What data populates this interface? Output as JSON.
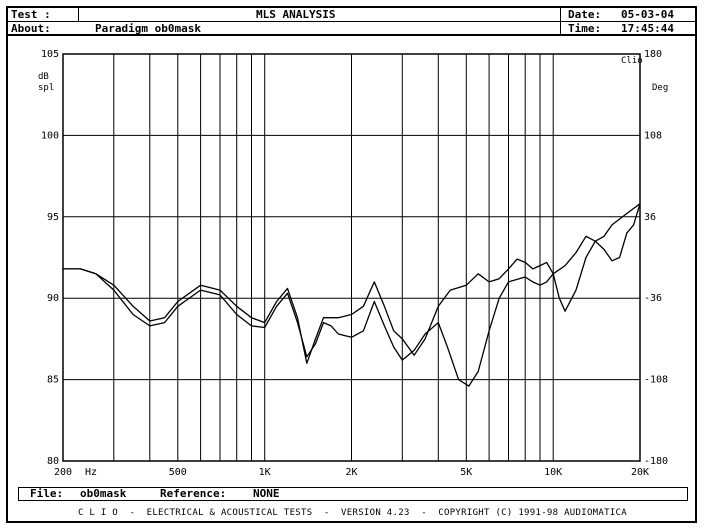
{
  "header": {
    "test_label": "Test :",
    "title": "MLS ANALYSIS",
    "date_label": "Date:",
    "date_value": "05-03-04",
    "about_label": "About:",
    "about_value": "Paradigm ob0mask",
    "time_label": "Time:",
    "time_value": "17:45:44"
  },
  "footer": {
    "file_label": "File:",
    "file_value": "ob0mask",
    "reference_label": "Reference:",
    "reference_value": "NONE"
  },
  "bottom_bar": "C L I O  -  ELECTRICAL & ACOUSTICAL TESTS  -  VERSION 4.23  -  COPYRIGHT (C) 1991-98 AUDIOMATICA",
  "chart_data": {
    "type": "line",
    "x_scale": "log",
    "xlim": [
      200,
      20000
    ],
    "ylim": [
      80,
      105
    ],
    "y2lim": [
      -180,
      180
    ],
    "grid": true,
    "ylabel": "dB\nspl",
    "y2label": "Deg",
    "corner_label": "Clio",
    "x_unit_label": "Hz",
    "x_ticks": [
      {
        "value": 200,
        "label": "200"
      },
      {
        "value": 500,
        "label": "500"
      },
      {
        "value": 1000,
        "label": "1K"
      },
      {
        "value": 2000,
        "label": "2K"
      },
      {
        "value": 5000,
        "label": "5K"
      },
      {
        "value": 10000,
        "label": "10K"
      },
      {
        "value": 20000,
        "label": "20K"
      }
    ],
    "x_grid": [
      300,
      400,
      500,
      600,
      700,
      800,
      900,
      1000,
      2000,
      3000,
      4000,
      5000,
      6000,
      7000,
      8000,
      9000,
      10000
    ],
    "y_ticks": [
      {
        "value": 105,
        "label": "105"
      },
      {
        "value": 100,
        "label": "100"
      },
      {
        "value": 95,
        "label": "95"
      },
      {
        "value": 90,
        "label": "90"
      },
      {
        "value": 85,
        "label": "85"
      },
      {
        "value": 80,
        "label": "80"
      }
    ],
    "y2_ticks": [
      {
        "value": 180,
        "label": "180"
      },
      {
        "value": 108,
        "label": "108"
      },
      {
        "value": 36,
        "label": "36"
      },
      {
        "value": -36,
        "label": "-36"
      },
      {
        "value": -108,
        "label": "-108"
      },
      {
        "value": -180,
        "label": "-180"
      }
    ],
    "series": [
      {
        "points": [
          [
            200,
            91.8
          ],
          [
            230,
            91.8
          ],
          [
            260,
            91.5
          ],
          [
            300,
            90.5
          ],
          [
            350,
            89.0
          ],
          [
            400,
            88.3
          ],
          [
            450,
            88.5
          ],
          [
            500,
            89.5
          ],
          [
            600,
            90.5
          ],
          [
            700,
            90.2
          ],
          [
            800,
            89.0
          ],
          [
            900,
            88.3
          ],
          [
            1000,
            88.2
          ],
          [
            1100,
            89.5
          ],
          [
            1200,
            90.3
          ],
          [
            1300,
            88.5
          ],
          [
            1400,
            86.4
          ],
          [
            1500,
            87.2
          ],
          [
            1600,
            88.5
          ],
          [
            1700,
            88.3
          ],
          [
            1800,
            87.8
          ],
          [
            2000,
            87.6
          ],
          [
            2200,
            88.0
          ],
          [
            2400,
            89.8
          ],
          [
            2600,
            88.3
          ],
          [
            2800,
            87.0
          ],
          [
            3000,
            86.2
          ],
          [
            3300,
            86.8
          ],
          [
            3600,
            87.8
          ],
          [
            4000,
            88.5
          ],
          [
            4300,
            87.0
          ],
          [
            4700,
            85.0
          ],
          [
            5100,
            84.6
          ],
          [
            5500,
            85.5
          ],
          [
            6000,
            88.0
          ],
          [
            6500,
            90.0
          ],
          [
            7000,
            91.0
          ],
          [
            8000,
            91.3
          ],
          [
            8500,
            91.0
          ],
          [
            9000,
            90.8
          ],
          [
            9500,
            91.0
          ],
          [
            10000,
            91.5
          ],
          [
            11000,
            92.0
          ],
          [
            12000,
            92.8
          ],
          [
            13000,
            93.8
          ],
          [
            14000,
            93.5
          ],
          [
            15000,
            93.0
          ],
          [
            16000,
            92.3
          ],
          [
            17000,
            92.5
          ],
          [
            18000,
            94.0
          ],
          [
            19000,
            94.5
          ],
          [
            20000,
            95.8
          ]
        ]
      },
      {
        "points": [
          [
            200,
            91.8
          ],
          [
            230,
            91.8
          ],
          [
            260,
            91.5
          ],
          [
            300,
            90.8
          ],
          [
            350,
            89.5
          ],
          [
            400,
            88.6
          ],
          [
            450,
            88.8
          ],
          [
            500,
            89.8
          ],
          [
            600,
            90.8
          ],
          [
            700,
            90.5
          ],
          [
            800,
            89.5
          ],
          [
            900,
            88.8
          ],
          [
            1000,
            88.5
          ],
          [
            1100,
            89.8
          ],
          [
            1200,
            90.6
          ],
          [
            1300,
            88.8
          ],
          [
            1400,
            86.0
          ],
          [
            1500,
            87.5
          ],
          [
            1600,
            88.8
          ],
          [
            1800,
            88.8
          ],
          [
            2000,
            89.0
          ],
          [
            2200,
            89.5
          ],
          [
            2400,
            91.0
          ],
          [
            2600,
            89.5
          ],
          [
            2800,
            88.0
          ],
          [
            3000,
            87.5
          ],
          [
            3300,
            86.5
          ],
          [
            3600,
            87.5
          ],
          [
            4000,
            89.5
          ],
          [
            4400,
            90.5
          ],
          [
            5000,
            90.8
          ],
          [
            5500,
            91.5
          ],
          [
            6000,
            91.0
          ],
          [
            6500,
            91.2
          ],
          [
            7000,
            91.8
          ],
          [
            7500,
            92.4
          ],
          [
            8000,
            92.2
          ],
          [
            8500,
            91.8
          ],
          [
            9000,
            92.0
          ],
          [
            9500,
            92.2
          ],
          [
            10000,
            91.5
          ],
          [
            10500,
            90.0
          ],
          [
            11000,
            89.2
          ],
          [
            12000,
            90.5
          ],
          [
            13000,
            92.5
          ],
          [
            14000,
            93.5
          ],
          [
            15000,
            93.8
          ],
          [
            16000,
            94.5
          ],
          [
            18000,
            95.2
          ],
          [
            20000,
            95.8
          ]
        ]
      }
    ]
  }
}
